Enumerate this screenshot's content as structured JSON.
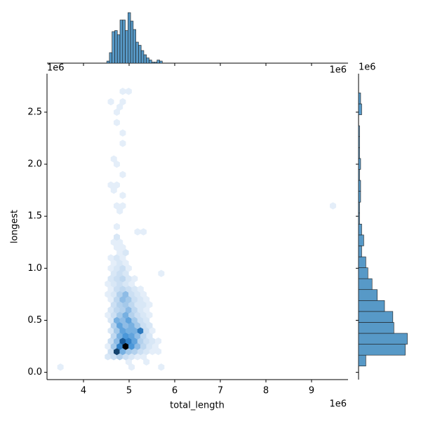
{
  "chart_data": [
    {
      "type": "hexbin",
      "x_label": "total_length",
      "y_label": "longest",
      "x_offset_label": "1e6",
      "y_offset_label": "1e6",
      "xlim": [
        3.2,
        9.8
      ],
      "ylim": [
        -0.07,
        2.87
      ],
      "xticks": [
        4,
        5,
        6,
        7,
        8,
        9
      ],
      "yticks": [
        {
          "value": 0,
          "label": "0.0"
        },
        0.5,
        {
          "value": 1,
          "label": "1.0"
        },
        1.5,
        {
          "value": 2,
          "label": "2.0"
        },
        2.5
      ],
      "colormap": [
        "#e4eef9",
        "#a9cbeb",
        "#3c8fd6",
        "#1c62a5",
        "#0b2740",
        "#000000"
      ],
      "rows": [
        {
          "y": 0.05,
          "x": [
            3.495,
            5.055,
            5.705
          ],
          "counts": [
            1,
            1,
            1
          ]
        },
        {
          "y": 0.1,
          "x": [
            4.99,
            5.38
          ],
          "counts": [
            1,
            1
          ]
        },
        {
          "y": 0.15,
          "x": [
            4.535,
            4.665,
            4.795,
            4.925,
            5.055,
            5.185,
            5.315
          ],
          "counts": [
            2,
            3,
            5,
            3,
            2,
            1,
            1
          ]
        },
        {
          "y": 0.2,
          "x": [
            4.6,
            4.73,
            4.86,
            4.99,
            5.12,
            5.25,
            5.38,
            5.51,
            5.64
          ],
          "counts": [
            3,
            18,
            8,
            6,
            5,
            3,
            2,
            1,
            1
          ]
        },
        {
          "y": 0.25,
          "x": [
            4.535,
            4.665,
            4.795,
            4.925,
            5.055,
            5.185,
            5.315,
            5.445,
            5.575
          ],
          "counts": [
            1,
            6,
            12,
            25,
            10,
            7,
            4,
            2,
            1
          ]
        },
        {
          "y": 0.3,
          "x": [
            4.6,
            4.73,
            4.86,
            4.99,
            5.12,
            5.25,
            5.38,
            5.51,
            5.64
          ],
          "counts": [
            3,
            7,
            16,
            12,
            9,
            5,
            3,
            2,
            1
          ]
        },
        {
          "y": 0.35,
          "x": [
            4.665,
            4.795,
            4.925,
            5.055,
            5.185,
            5.315,
            5.445
          ],
          "counts": [
            4,
            8,
            10,
            9,
            7,
            4,
            2
          ]
        },
        {
          "y": 0.4,
          "x": [
            4.6,
            4.73,
            4.86,
            4.99,
            5.12,
            5.25,
            5.38,
            5.51
          ],
          "counts": [
            2,
            6,
            9,
            8,
            8,
            13,
            3,
            1
          ]
        },
        {
          "y": 0.45,
          "x": [
            4.665,
            4.795,
            4.925,
            5.055,
            5.185,
            5.315,
            5.445
          ],
          "counts": [
            5,
            9,
            7,
            8,
            6,
            3,
            2
          ]
        },
        {
          "y": 0.5,
          "x": [
            4.6,
            4.73,
            4.86,
            4.99,
            5.12,
            5.25,
            5.38
          ],
          "counts": [
            2,
            8,
            7,
            9,
            6,
            3,
            2
          ]
        },
        {
          "y": 0.55,
          "x": [
            4.535,
            4.665,
            4.795,
            4.925,
            5.055,
            5.185,
            5.315,
            5.445
          ],
          "counts": [
            1,
            3,
            6,
            8,
            5,
            3,
            2,
            1
          ]
        },
        {
          "y": 0.6,
          "x": [
            4.6,
            4.73,
            4.86,
            4.99,
            5.12,
            5.25,
            5.38
          ],
          "counts": [
            2,
            4,
            5,
            7,
            4,
            2,
            1
          ]
        },
        {
          "y": 0.65,
          "x": [
            4.665,
            4.795,
            4.925,
            5.055,
            5.185,
            5.315,
            5.445
          ],
          "counts": [
            3,
            5,
            6,
            4,
            2,
            2,
            1
          ]
        },
        {
          "y": 0.7,
          "x": [
            4.6,
            4.73,
            4.86,
            4.99,
            5.12,
            5.25,
            5.38
          ],
          "counts": [
            1,
            4,
            7,
            6,
            3,
            2,
            1
          ]
        },
        {
          "y": 0.75,
          "x": [
            4.535,
            4.665,
            4.795,
            4.925,
            5.055,
            5.185,
            5.315
          ],
          "counts": [
            1,
            2,
            5,
            7,
            3,
            2,
            1
          ]
        },
        {
          "y": 0.8,
          "x": [
            4.6,
            4.73,
            4.86,
            4.99,
            5.12,
            5.25
          ],
          "counts": [
            1,
            3,
            4,
            3,
            2,
            1
          ]
        },
        {
          "y": 0.85,
          "x": [
            4.535,
            4.665,
            4.795,
            4.925,
            5.055
          ],
          "counts": [
            1,
            2,
            3,
            2,
            1
          ]
        },
        {
          "y": 0.9,
          "x": [
            4.6,
            4.73,
            4.86,
            4.99,
            5.12
          ],
          "counts": [
            2,
            3,
            4,
            2,
            1
          ]
        },
        {
          "y": 0.95,
          "x": [
            4.665,
            4.795,
            4.925,
            5.705
          ],
          "counts": [
            2,
            3,
            2,
            1
          ]
        },
        {
          "y": 1.0,
          "x": [
            4.6,
            4.73,
            4.86,
            4.99
          ],
          "counts": [
            1,
            2,
            3,
            1
          ]
        },
        {
          "y": 1.05,
          "x": [
            4.665,
            4.795,
            4.925
          ],
          "counts": [
            1,
            2,
            1
          ]
        },
        {
          "y": 1.1,
          "x": [
            4.6,
            4.73,
            4.86
          ],
          "counts": [
            1,
            2,
            1
          ]
        },
        {
          "y": 1.15,
          "x": [
            4.795,
            4.925
          ],
          "counts": [
            1,
            2
          ]
        },
        {
          "y": 1.2,
          "x": [
            4.73,
            4.86
          ],
          "counts": [
            1,
            1
          ]
        },
        {
          "y": 1.25,
          "x": [
            4.665,
            4.795
          ],
          "counts": [
            1,
            1
          ]
        },
        {
          "y": 1.3,
          "x": [
            4.73
          ],
          "counts": [
            2
          ]
        },
        {
          "y": 1.35,
          "x": [
            5.185,
            5.315
          ],
          "counts": [
            1,
            1
          ]
        },
        {
          "y": 1.4,
          "x": [
            4.73
          ],
          "counts": [
            1
          ]
        },
        {
          "y": 1.55,
          "x": [
            4.795
          ],
          "counts": [
            1
          ]
        },
        {
          "y": 1.6,
          "x": [
            4.73,
            4.86,
            9.47
          ],
          "counts": [
            1,
            1,
            1
          ]
        },
        {
          "y": 1.7,
          "x": [
            4.86
          ],
          "counts": [
            1
          ]
        },
        {
          "y": 1.75,
          "x": [
            4.665
          ],
          "counts": [
            1
          ]
        },
        {
          "y": 1.8,
          "x": [
            4.6,
            4.73
          ],
          "counts": [
            1,
            1
          ]
        },
        {
          "y": 1.9,
          "x": [
            4.86
          ],
          "counts": [
            1
          ]
        },
        {
          "y": 2.0,
          "x": [
            4.73
          ],
          "counts": [
            1
          ]
        },
        {
          "y": 2.05,
          "x": [
            4.665
          ],
          "counts": [
            1
          ]
        },
        {
          "y": 2.2,
          "x": [
            4.86
          ],
          "counts": [
            1
          ]
        },
        {
          "y": 2.3,
          "x": [
            4.86
          ],
          "counts": [
            1
          ]
        },
        {
          "y": 2.4,
          "x": [
            4.73
          ],
          "counts": [
            1
          ]
        },
        {
          "y": 2.5,
          "x": [
            4.73
          ],
          "counts": [
            1
          ]
        },
        {
          "y": 2.55,
          "x": [
            4.795
          ],
          "counts": [
            1
          ]
        },
        {
          "y": 2.6,
          "x": [
            4.6,
            4.86
          ],
          "counts": [
            1,
            1
          ]
        },
        {
          "y": 2.7,
          "x": [
            4.86,
            4.99
          ],
          "counts": [
            1,
            1
          ]
        }
      ]
    },
    {
      "type": "histogram",
      "orientation": "vertical",
      "color": "#5799c7",
      "x_offset_label": "1e6",
      "xlim": [
        3.2,
        9.8
      ],
      "xticks": [
        4,
        5,
        6,
        7,
        8,
        9
      ],
      "ylim": [
        0,
        50
      ],
      "bins": [
        4.51,
        4.568,
        4.626,
        4.684,
        4.742,
        4.8,
        4.858,
        4.916,
        4.974,
        5.032,
        5.09,
        5.148,
        5.206,
        5.264,
        5.322,
        5.38,
        5.438,
        5.496,
        5.554,
        5.612,
        5.67,
        5.728
      ],
      "counts": [
        2,
        10,
        30,
        31,
        27,
        41,
        41,
        31,
        48,
        40,
        32,
        20,
        17,
        12,
        8,
        5,
        3,
        1,
        1,
        3,
        2
      ]
    },
    {
      "type": "histogram",
      "orientation": "horizontal",
      "color": "#5799c7",
      "y_offset_label": "1e6",
      "ylim": [
        -0.07,
        2.87
      ],
      "yticks": [
        0,
        0.5,
        1,
        1.5,
        2,
        2.5
      ],
      "xlim": [
        0,
        50
      ],
      "bins": [
        0.06,
        0.165,
        0.27,
        0.375,
        0.48,
        0.585,
        0.69,
        0.795,
        0.9,
        1.005,
        1.11,
        1.215,
        1.32,
        1.425,
        1.53,
        1.635,
        1.74,
        1.845,
        1.95,
        2.055,
        2.16,
        2.265,
        2.37,
        2.475,
        2.58,
        2.685
      ],
      "counts": [
        7,
        45,
        47,
        34,
        33,
        25,
        18,
        13,
        9,
        7,
        3,
        5,
        3,
        1,
        1,
        2,
        2,
        1,
        2,
        1,
        1,
        1,
        0,
        3,
        2
      ]
    }
  ]
}
